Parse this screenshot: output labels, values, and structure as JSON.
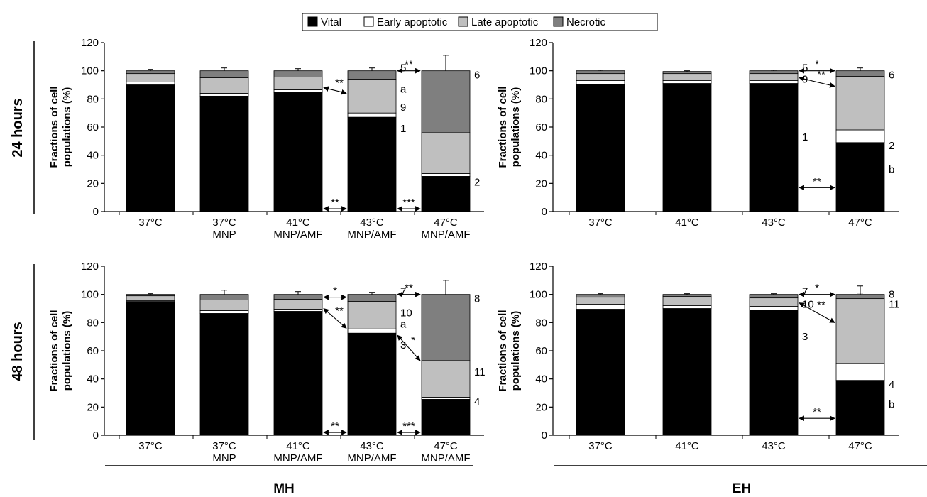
{
  "legend": [
    {
      "label": "Vital",
      "color": "#000000"
    },
    {
      "label": "Early apoptotic",
      "color": "#ffffff"
    },
    {
      "label": "Late apoptotic",
      "color": "#bfbfbf"
    },
    {
      "label": "Necrotic",
      "color": "#7f7f7f"
    }
  ],
  "rows": [
    "24 hours",
    "48 hours"
  ],
  "groups": [
    "MH",
    "EH"
  ],
  "ylabel_lines": [
    "Fractions of cell",
    "populations (%)"
  ],
  "yticks": [
    "0",
    "20",
    "40",
    "60",
    "80",
    "100",
    "120"
  ],
  "chart_data": [
    {
      "type": "bar",
      "stacked": true,
      "panel": "24 hours / MH",
      "categories": [
        [
          "37°C"
        ],
        [
          "37°C",
          "MNP"
        ],
        [
          "41°C",
          "MNP/AMF"
        ],
        [
          "43°C",
          "MNP/AMF"
        ],
        [
          "47°C",
          "MNP/AMF"
        ]
      ],
      "ylabel": "Fractions of cell populations (%)",
      "ylim": [
        0,
        120
      ],
      "series": [
        {
          "name": "Vital",
          "values": [
            90,
            82,
            84.5,
            67,
            25
          ],
          "errors": [
            1.5,
            2.5,
            2,
            2,
            2
          ]
        },
        {
          "name": "Early apoptotic",
          "values": [
            2,
            2,
            2,
            3,
            2
          ]
        },
        {
          "name": "Late apoptotic",
          "values": [
            6,
            11,
            9,
            24,
            29
          ],
          "errors": [
            0,
            0,
            0,
            0,
            11
          ]
        },
        {
          "name": "Necrotic",
          "values": [
            2,
            5,
            4.5,
            6,
            44
          ],
          "errors": [
            1,
            2,
            1.5,
            2,
            11
          ]
        }
      ],
      "annotations": [
        {
          "text": "5",
          "bar": 3,
          "y": 102
        },
        {
          "text": "a",
          "bar": 3,
          "y": 87
        },
        {
          "text": "9",
          "bar": 3,
          "y": 74
        },
        {
          "text": "1",
          "bar": 3,
          "y": 59
        },
        {
          "text": "6",
          "bar": 4,
          "y": 97
        },
        {
          "text": "2",
          "bar": 4,
          "y": 21
        }
      ],
      "brackets": [
        {
          "from": 2,
          "to": 3,
          "y": 2,
          "label": "**"
        },
        {
          "from": 3,
          "to": 4,
          "y": 2,
          "label": "***"
        },
        {
          "from": 3,
          "to": 4,
          "y": 100,
          "label": "**"
        }
      ],
      "arrows": [
        {
          "bar": 2,
          "y": 88,
          "to_bar": 3,
          "to_y": 84,
          "label": "**"
        }
      ]
    },
    {
      "type": "bar",
      "stacked": true,
      "panel": "24 hours / EH",
      "categories": [
        [
          "37°C"
        ],
        [
          "41°C"
        ],
        [
          "43°C"
        ],
        [
          "47°C"
        ]
      ],
      "ylabel": "Fractions of cell populations (%)",
      "ylim": [
        0,
        120
      ],
      "series": [
        {
          "name": "Vital",
          "values": [
            90.5,
            91,
            91,
            49
          ],
          "errors": [
            1.5,
            0.5,
            1,
            3
          ]
        },
        {
          "name": "Early apoptotic",
          "values": [
            2.5,
            2,
            2,
            9
          ]
        },
        {
          "name": "Late apoptotic",
          "values": [
            5,
            5,
            5,
            38
          ],
          "errors": [
            0,
            0,
            0,
            2
          ]
        },
        {
          "name": "Necrotic",
          "values": [
            2,
            1.5,
            2,
            4
          ],
          "errors": [
            0.5,
            0.5,
            0.5,
            2
          ]
        }
      ],
      "annotations": [
        {
          "text": "5",
          "bar": 2,
          "y": 102
        },
        {
          "text": "9",
          "bar": 2,
          "y": 94
        },
        {
          "text": "1",
          "bar": 2,
          "y": 53
        },
        {
          "text": "6",
          "bar": 3,
          "y": 97
        },
        {
          "text": "2",
          "bar": 3,
          "y": 47
        },
        {
          "text": "b",
          "bar": 3,
          "y": 30
        }
      ],
      "brackets": [
        {
          "from": 2,
          "to": 3,
          "y": 100,
          "label": "*"
        },
        {
          "from": 2,
          "to": 3,
          "y": 17,
          "label": "**"
        }
      ],
      "arrows": [
        {
          "bar": 2,
          "y": 95,
          "to_bar": 3,
          "to_y": 89,
          "label": "**"
        }
      ]
    },
    {
      "type": "bar",
      "stacked": true,
      "panel": "48 hours / MH",
      "categories": [
        [
          "37°C"
        ],
        [
          "37°C",
          "MNP"
        ],
        [
          "41°C",
          "MNP/AMF"
        ],
        [
          "43°C",
          "MNP/AMF"
        ],
        [
          "47°C",
          "MNP/AMF"
        ]
      ],
      "ylabel": "Fractions of cell populations (%)",
      "ylim": [
        0,
        120
      ],
      "series": [
        {
          "name": "Vital",
          "values": [
            95,
            86.5,
            88,
            72.5,
            25.5
          ],
          "errors": [
            0.5,
            2.5,
            2,
            2,
            2
          ]
        },
        {
          "name": "Early apoptotic",
          "values": [
            0.5,
            2,
            1.5,
            3,
            1.5
          ]
        },
        {
          "name": "Late apoptotic",
          "values": [
            3.5,
            7.5,
            7,
            19.5,
            26
          ],
          "errors": [
            0,
            0,
            0,
            0,
            9
          ]
        },
        {
          "name": "Necrotic",
          "values": [
            1,
            4,
            3.5,
            5,
            47
          ],
          "errors": [
            0.5,
            3,
            2,
            1.5,
            10
          ]
        }
      ],
      "annotations": [
        {
          "text": "7",
          "bar": 3,
          "y": 102
        },
        {
          "text": "10",
          "bar": 3,
          "y": 87
        },
        {
          "text": "a",
          "bar": 3,
          "y": 79
        },
        {
          "text": "3",
          "bar": 3,
          "y": 64
        },
        {
          "text": "8",
          "bar": 4,
          "y": 97
        },
        {
          "text": "11",
          "bar": 4,
          "y": 45
        },
        {
          "text": "4",
          "bar": 4,
          "y": 24
        }
      ],
      "brackets": [
        {
          "from": 2,
          "to": 3,
          "y": 98,
          "label": "*"
        },
        {
          "from": 2,
          "to": 3,
          "y": 2,
          "label": "**"
        },
        {
          "from": 3,
          "to": 4,
          "y": 2,
          "label": "***"
        },
        {
          "from": 3,
          "to": 4,
          "y": 100,
          "label": "**"
        }
      ],
      "arrows": [
        {
          "bar": 2,
          "y": 90,
          "to_bar": 3,
          "to_y": 76,
          "label": "**"
        },
        {
          "bar": 3,
          "y": 71,
          "to_bar": 4,
          "to_y": 53,
          "label": "*"
        }
      ]
    },
    {
      "type": "bar",
      "stacked": true,
      "panel": "48 hours / EH",
      "categories": [
        [
          "37°C"
        ],
        [
          "41°C"
        ],
        [
          "43°C"
        ],
        [
          "47°C"
        ]
      ],
      "ylabel": "Fractions of cell populations (%)",
      "ylim": [
        0,
        120
      ],
      "series": [
        {
          "name": "Vital",
          "values": [
            89.5,
            90,
            89,
            39
          ],
          "errors": [
            1.5,
            0.5,
            2,
            4.5
          ]
        },
        {
          "name": "Early apoptotic",
          "values": [
            3.5,
            2,
            2.5,
            12
          ]
        },
        {
          "name": "Late apoptotic",
          "values": [
            5,
            6.5,
            6,
            46
          ],
          "errors": [
            0,
            0,
            0,
            4
          ]
        },
        {
          "name": "Necrotic",
          "values": [
            2,
            1.5,
            2.5,
            3
          ],
          "errors": [
            0.5,
            0.5,
            0.5,
            6
          ]
        }
      ],
      "annotations": [
        {
          "text": "7",
          "bar": 2,
          "y": 102
        },
        {
          "text": "10",
          "bar": 2,
          "y": 93
        },
        {
          "text": "3",
          "bar": 2,
          "y": 70
        },
        {
          "text": "8",
          "bar": 3,
          "y": 100
        },
        {
          "text": "11",
          "bar": 3,
          "y": 93
        },
        {
          "text": "4",
          "bar": 3,
          "y": 36
        },
        {
          "text": "b",
          "bar": 3,
          "y": 22
        }
      ],
      "brackets": [
        {
          "from": 2,
          "to": 3,
          "y": 100,
          "label": "*"
        },
        {
          "from": 2,
          "to": 3,
          "y": 12,
          "label": "**"
        }
      ],
      "arrows": [
        {
          "bar": 2,
          "y": 94,
          "to_bar": 3,
          "to_y": 80,
          "label": "**"
        }
      ]
    }
  ]
}
